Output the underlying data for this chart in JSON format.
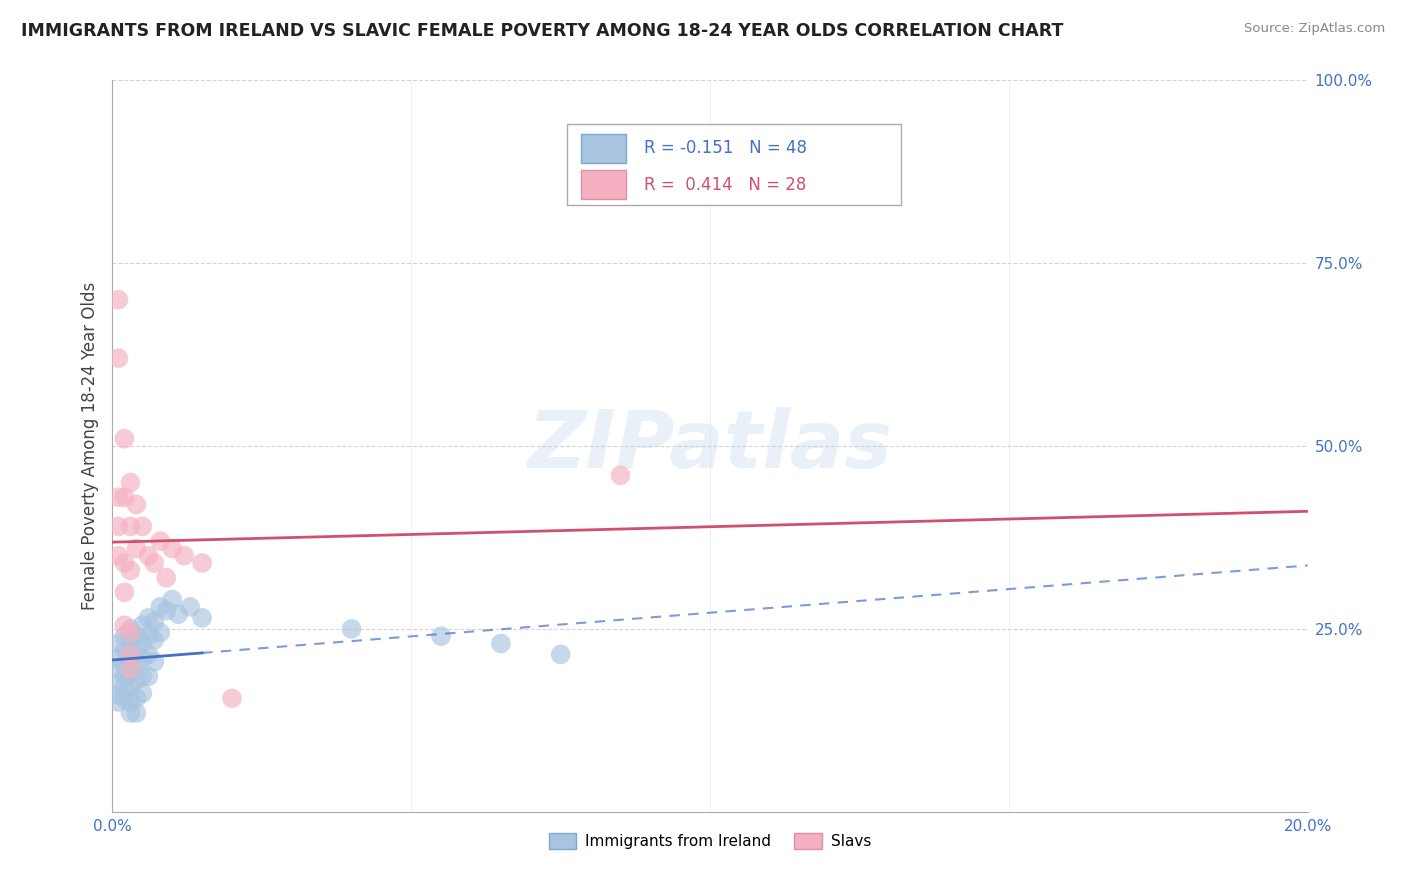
{
  "title": "IMMIGRANTS FROM IRELAND VS SLAVIC FEMALE POVERTY AMONG 18-24 YEAR OLDS CORRELATION CHART",
  "source": "Source: ZipAtlas.com",
  "ylabel": "Female Poverty Among 18-24 Year Olds",
  "legend_ireland_r": "-0.151",
  "legend_ireland_n": "48",
  "legend_slavs_r": "0.414",
  "legend_slavs_n": "28",
  "watermark": "ZIPatlas",
  "ireland_color": "#a8c4e0",
  "slavs_color": "#f4b0c0",
  "ireland_line_color": "#4472c4",
  "slavs_line_color": "#d05070",
  "ireland_scatter": [
    [
      0.001,
      0.23
    ],
    [
      0.001,
      0.21
    ],
    [
      0.001,
      0.195
    ],
    [
      0.001,
      0.175
    ],
    [
      0.001,
      0.16
    ],
    [
      0.001,
      0.15
    ],
    [
      0.002,
      0.24
    ],
    [
      0.002,
      0.22
    ],
    [
      0.002,
      0.2
    ],
    [
      0.002,
      0.185
    ],
    [
      0.002,
      0.17
    ],
    [
      0.002,
      0.155
    ],
    [
      0.003,
      0.25
    ],
    [
      0.003,
      0.23
    ],
    [
      0.003,
      0.21
    ],
    [
      0.003,
      0.19
    ],
    [
      0.003,
      0.17
    ],
    [
      0.003,
      0.15
    ],
    [
      0.003,
      0.135
    ],
    [
      0.004,
      0.24
    ],
    [
      0.004,
      0.22
    ],
    [
      0.004,
      0.2
    ],
    [
      0.004,
      0.18
    ],
    [
      0.004,
      0.155
    ],
    [
      0.004,
      0.135
    ],
    [
      0.005,
      0.255
    ],
    [
      0.005,
      0.23
    ],
    [
      0.005,
      0.21
    ],
    [
      0.005,
      0.185
    ],
    [
      0.005,
      0.162
    ],
    [
      0.006,
      0.265
    ],
    [
      0.006,
      0.24
    ],
    [
      0.006,
      0.215
    ],
    [
      0.006,
      0.185
    ],
    [
      0.007,
      0.26
    ],
    [
      0.007,
      0.235
    ],
    [
      0.007,
      0.205
    ],
    [
      0.008,
      0.28
    ],
    [
      0.008,
      0.245
    ],
    [
      0.009,
      0.275
    ],
    [
      0.01,
      0.29
    ],
    [
      0.011,
      0.27
    ],
    [
      0.013,
      0.28
    ],
    [
      0.015,
      0.265
    ],
    [
      0.04,
      0.25
    ],
    [
      0.055,
      0.24
    ],
    [
      0.065,
      0.23
    ],
    [
      0.075,
      0.215
    ]
  ],
  "slavs_scatter": [
    [
      0.001,
      0.7
    ],
    [
      0.001,
      0.62
    ],
    [
      0.001,
      0.43
    ],
    [
      0.001,
      0.39
    ],
    [
      0.001,
      0.35
    ],
    [
      0.002,
      0.51
    ],
    [
      0.002,
      0.43
    ],
    [
      0.002,
      0.34
    ],
    [
      0.002,
      0.3
    ],
    [
      0.002,
      0.255
    ],
    [
      0.003,
      0.45
    ],
    [
      0.003,
      0.39
    ],
    [
      0.003,
      0.33
    ],
    [
      0.003,
      0.245
    ],
    [
      0.003,
      0.215
    ],
    [
      0.003,
      0.195
    ],
    [
      0.004,
      0.42
    ],
    [
      0.004,
      0.36
    ],
    [
      0.005,
      0.39
    ],
    [
      0.006,
      0.35
    ],
    [
      0.007,
      0.34
    ],
    [
      0.008,
      0.37
    ],
    [
      0.009,
      0.32
    ],
    [
      0.01,
      0.36
    ],
    [
      0.012,
      0.35
    ],
    [
      0.015,
      0.34
    ],
    [
      0.02,
      0.155
    ],
    [
      0.085,
      0.46
    ]
  ],
  "xlim": [
    0.0,
    0.2
  ],
  "ylim": [
    0.0,
    1.0
  ],
  "ytick_vals": [
    0.25,
    0.5,
    0.75,
    1.0
  ],
  "ytick_labels": [
    "25.0%",
    "50.0%",
    "75.0%",
    "100.0%"
  ],
  "grid_color": "#cccccc",
  "tick_color": "#4472c4"
}
